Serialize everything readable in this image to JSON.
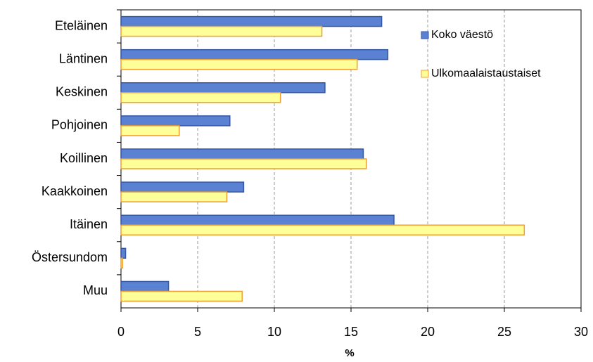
{
  "chart_data": {
    "type": "bar",
    "orientation": "horizontal",
    "xlabel": "%",
    "categories": [
      "Eteläinen",
      "Läntinen",
      "Keskinen",
      "Pohjoinen",
      "Koillinen",
      "Kaakkoinen",
      "Itäinen",
      "Östersundom",
      "Muu"
    ],
    "series": [
      {
        "name": "Koko väestö",
        "color": "#5b82d2",
        "border": "#3457a6",
        "values": [
          17.0,
          17.4,
          13.3,
          7.1,
          15.8,
          8.0,
          17.8,
          0.3,
          3.1
        ]
      },
      {
        "name": "Ulkomaalaistaustaiset",
        "color": "#ffff99",
        "border": "#f0a030",
        "values": [
          13.1,
          15.4,
          10.4,
          3.8,
          16.0,
          6.9,
          26.3,
          0.1,
          7.9
        ]
      }
    ],
    "xlim": [
      0,
      30
    ],
    "xticks": [
      0,
      5,
      10,
      15,
      20,
      25,
      30
    ],
    "grid": true,
    "legend": "top-right"
  }
}
